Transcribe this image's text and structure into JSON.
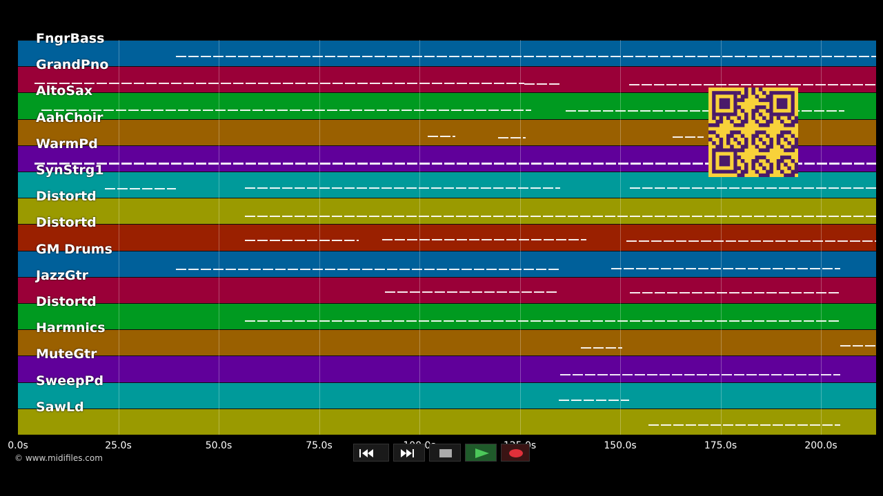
{
  "tracks": [
    {
      "name": "FngrBass",
      "color": "#00609a"
    },
    {
      "name": "GrandPno",
      "color": "#9a0038"
    },
    {
      "name": "AltoSax",
      "color": "#009a20"
    },
    {
      "name": "AahChoir",
      "color": "#9a6000"
    },
    {
      "name": "WarmPd",
      "color": "#60009a"
    },
    {
      "name": "SynStrg1",
      "color": "#009a9a"
    },
    {
      "name": "Distortd",
      "color": "#9a9a00"
    },
    {
      "name": "Distortd",
      "color": "#9a2000"
    },
    {
      "name": "GM Drums",
      "color": "#00609a"
    },
    {
      "name": "JazzGtr",
      "color": "#9a0038"
    },
    {
      "name": "Distortd",
      "color": "#009a20"
    },
    {
      "name": "Harmnics",
      "color": "#9a6000"
    },
    {
      "name": "MuteGtr",
      "color": "#60009a"
    },
    {
      "name": "SweepPd",
      "color": "#009a9a"
    },
    {
      "name": "SawLd",
      "color": "#9a9a00"
    }
  ],
  "timeline": {
    "tick_labels": [
      "0.0s",
      "25.0s",
      "50.0s",
      "75.0s",
      "100.0s",
      "125.0s",
      "150.0s",
      "175.0s",
      "200.0s"
    ],
    "tick_seconds": [
      0,
      25,
      50,
      75,
      100,
      125,
      150,
      175,
      200
    ],
    "max_seconds": 214
  },
  "copyright": "© www.midifiles.com",
  "controls": [
    {
      "name": "rewind-button",
      "icon": "rewind-icon"
    },
    {
      "name": "fast-forward-button",
      "icon": "fast-forward-icon"
    },
    {
      "name": "stop-button",
      "icon": "stop-icon"
    },
    {
      "name": "play-button",
      "icon": "play-icon"
    },
    {
      "name": "record-button",
      "icon": "record-icon"
    }
  ],
  "qr": {
    "icon": "qr-code-icon",
    "color": "#f8d23a",
    "dark": "#4a1a6a"
  }
}
